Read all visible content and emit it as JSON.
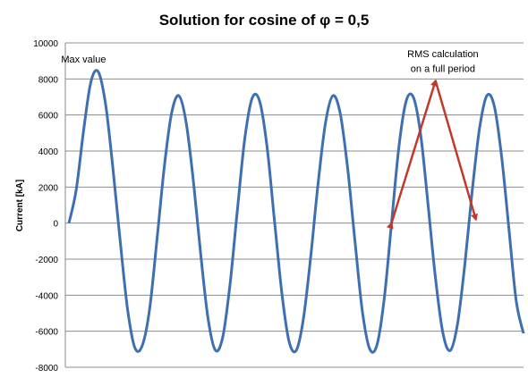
{
  "chart_data": {
    "type": "line",
    "title": "Solution for cosine of φ = 0,5",
    "xlabel": "",
    "ylabel": "Current [kA]",
    "ylim": [
      -8000,
      10000
    ],
    "yticks": [
      "10000",
      "8000",
      "6000",
      "4000",
      "2000",
      "0",
      "-2000",
      "-4000",
      "-6000",
      "-8000"
    ],
    "ytick_values": [
      10000,
      8000,
      6000,
      4000,
      2000,
      0,
      -2000,
      -4000,
      -6000,
      -8000
    ],
    "grid": true,
    "legend": "none",
    "x_range": [
      0,
      6.2
    ],
    "series": [
      {
        "color": "#3e6fb0",
        "x": [
          0,
          0.1,
          0.2,
          0.3,
          0.4,
          0.5,
          0.6,
          0.7,
          0.8,
          0.9,
          1.0,
          1.1,
          1.2,
          1.3,
          1.4,
          1.5,
          1.6,
          1.7,
          1.8,
          1.9,
          2.0,
          2.1,
          2.2,
          2.3,
          2.4,
          2.5,
          2.6,
          2.7,
          2.8,
          2.9,
          3.0,
          3.1,
          3.2,
          3.3,
          3.4,
          3.5,
          3.6,
          3.7,
          3.8,
          3.9,
          4.0,
          4.1,
          4.2,
          4.3,
          4.4,
          4.5,
          4.6,
          4.7,
          4.8,
          4.9,
          5.0,
          5.1,
          5.2,
          5.3,
          5.4,
          5.5,
          5.6,
          5.7,
          5.8,
          5.9,
          6.0,
          6.1,
          6.2
        ],
        "values": [
          0,
          1862,
          5132,
          7840,
          8400,
          6600,
          3040,
          -1040,
          -4770,
          -6920,
          -6800,
          -4790,
          -960,
          3080,
          6090,
          7070,
          5550,
          2230,
          -1830,
          -5360,
          -7070,
          -6280,
          -3290,
          840,
          4730,
          6940,
          6780,
          4310,
          280,
          -3730,
          -6520,
          -7070,
          -5250,
          -1770,
          2260,
          5580,
          7070,
          6090,
          3080,
          -940,
          -4820,
          -6960,
          -6780,
          -4210,
          0,
          4210,
          6780,
          6960,
          4820,
          940,
          -3080,
          -6090,
          -7070,
          -5580,
          -2260,
          1770,
          5250,
          7070,
          6520,
          3730,
          -280,
          -4310,
          -6120
        ]
      }
    ],
    "annotations": [
      {
        "text": "Max value",
        "x": 0.2,
        "y": 8900
      },
      {
        "text": "RMS calculation",
        "x": 5.1,
        "y": 9200
      },
      {
        "text": "on a full period",
        "x": 5.1,
        "y": 8400
      }
    ],
    "arrows": {
      "color": "#c0392b",
      "points": [
        {
          "x": 4.4,
          "y": 0
        },
        {
          "x": 5.0,
          "y": 7900
        },
        {
          "x": 5.55,
          "y": 200
        }
      ]
    }
  }
}
